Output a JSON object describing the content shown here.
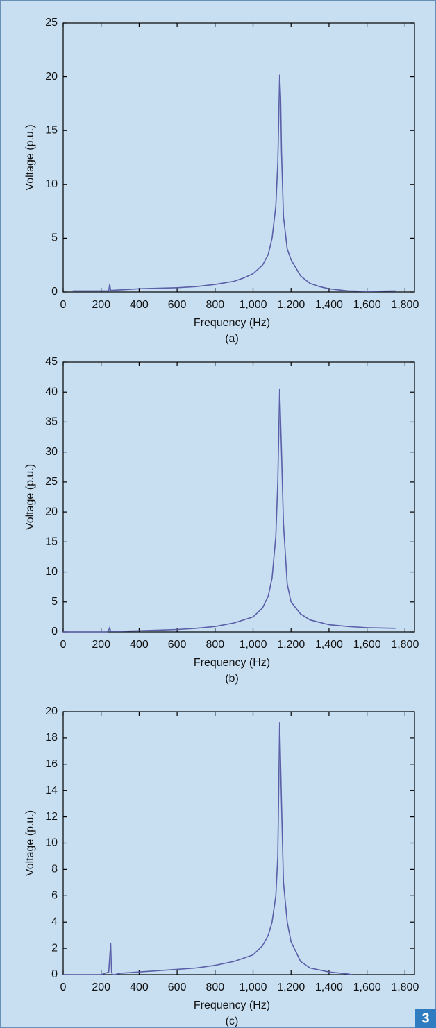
{
  "figure_number": "3",
  "chart_data": [
    {
      "type": "line",
      "caption": "(a)",
      "xlabel": "Frequency (Hz)",
      "ylabel": "Voltage (p.u.)",
      "xlim": [
        0,
        1850
      ],
      "ylim": [
        0,
        25
      ],
      "xticks": [
        0,
        200,
        400,
        600,
        800,
        {
          "value": 1000,
          "label": "1,000"
        },
        {
          "value": 1200,
          "label": "1,200"
        },
        {
          "value": 1400,
          "label": "1,400"
        },
        {
          "value": 1600,
          "label": "1,600"
        },
        {
          "value": 1800,
          "label": "1,800"
        }
      ],
      "yticks": [
        0,
        5,
        10,
        15,
        20,
        25
      ],
      "series": [
        {
          "color": "#5a5fa8",
          "x": [
            50,
            240,
            245,
            250,
            300,
            400,
            500,
            600,
            700,
            800,
            900,
            950,
            1000,
            1050,
            1080,
            1100,
            1120,
            1130,
            1140,
            1145,
            1150,
            1160,
            1180,
            1200,
            1250,
            1300,
            1350,
            1400,
            1500,
            1600,
            1750
          ],
          "values": [
            0.1,
            0.1,
            0.7,
            0.15,
            0.2,
            0.3,
            0.35,
            0.4,
            0.5,
            0.7,
            1.0,
            1.3,
            1.7,
            2.5,
            3.5,
            5,
            8,
            12,
            20.2,
            18,
            13,
            7,
            4,
            3,
            1.5,
            0.8,
            0.5,
            0.3,
            0.1,
            0.05,
            0.1
          ]
        }
      ]
    },
    {
      "type": "line",
      "caption": "(b)",
      "xlabel": "Frequency (Hz)",
      "ylabel": "Voltage (p.u.)",
      "xlim": [
        0,
        1850
      ],
      "ylim": [
        0,
        45
      ],
      "xticks": [
        0,
        200,
        400,
        600,
        800,
        {
          "value": 1000,
          "label": "1,000"
        },
        {
          "value": 1200,
          "label": "1,200"
        },
        {
          "value": 1400,
          "label": "1,400"
        },
        {
          "value": 1600,
          "label": "1,600"
        },
        {
          "value": 1800,
          "label": "1,800"
        }
      ],
      "yticks": [
        0,
        5,
        10,
        15,
        20,
        25,
        30,
        35,
        40,
        45
      ],
      "series": [
        {
          "color": "#5a5fa8",
          "x": [
            0,
            230,
            240,
            245,
            250,
            300,
            400,
            500,
            600,
            700,
            800,
            900,
            1000,
            1050,
            1080,
            1100,
            1120,
            1130,
            1140,
            1150,
            1160,
            1180,
            1200,
            1250,
            1300,
            1400,
            1500,
            1600,
            1750
          ],
          "values": [
            0,
            0,
            0.3,
            0.7,
            0.1,
            0.1,
            0.2,
            0.3,
            0.4,
            0.6,
            0.9,
            1.5,
            2.5,
            4,
            6,
            9,
            16,
            25,
            40.5,
            30,
            18,
            8,
            5,
            3,
            2,
            1.2,
            0.9,
            0.7,
            0.6
          ]
        }
      ]
    },
    {
      "type": "line",
      "caption": "(c)",
      "xlabel": "Frequency (Hz)",
      "ylabel": "Voltage (p.u.)",
      "xlim": [
        0,
        1850
      ],
      "ylim": [
        0,
        20
      ],
      "xticks": [
        0,
        200,
        400,
        600,
        800,
        {
          "value": 1000,
          "label": "1,000"
        },
        {
          "value": 1200,
          "label": "1,200"
        },
        {
          "value": 1400,
          "label": "1,400"
        },
        {
          "value": 1600,
          "label": "1,600"
        },
        {
          "value": 1800,
          "label": "1,800"
        }
      ],
      "yticks": [
        0,
        2,
        4,
        6,
        8,
        10,
        12,
        14,
        16,
        18,
        20
      ],
      "series": [
        {
          "color": "#5a5fa8",
          "x": [
            0,
            200,
            240,
            250,
            255,
            260,
            270,
            300,
            400,
            500,
            600,
            700,
            800,
            900,
            1000,
            1050,
            1080,
            1100,
            1120,
            1130,
            1140,
            1150,
            1160,
            1180,
            1200,
            1250,
            1300,
            1400,
            1500,
            1520
          ],
          "values": [
            0,
            0,
            0.2,
            2.4,
            0.2,
            0,
            0,
            0.1,
            0.2,
            0.3,
            0.4,
            0.5,
            0.7,
            1.0,
            1.5,
            2.2,
            3,
            4,
            6,
            9,
            19.2,
            13,
            7,
            4,
            2.5,
            1,
            0.5,
            0.2,
            0.05,
            0
          ]
        }
      ]
    }
  ]
}
